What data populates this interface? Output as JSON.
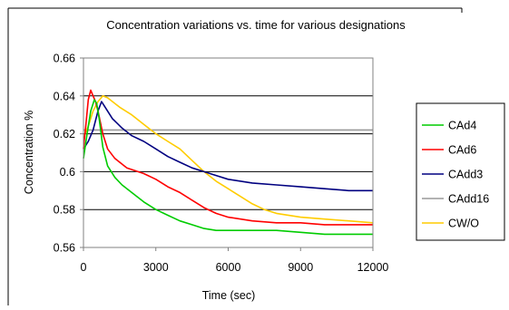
{
  "chart_data": {
    "type": "line",
    "title": "Concentration variations vs. time for various designations",
    "xlabel": "Time (sec)",
    "ylabel": "Concentration %",
    "xlim": [
      0,
      12000
    ],
    "ylim": [
      0.56,
      0.66
    ],
    "xticks": [
      0,
      3000,
      6000,
      9000,
      12000
    ],
    "xtick_labels": [
      "0",
      "3000",
      "6000",
      "9000",
      "12000"
    ],
    "yticks": [
      0.56,
      0.58,
      0.6,
      0.62,
      0.64,
      0.66
    ],
    "ytick_labels": [
      "0.56",
      "0.58",
      "0.6",
      "0.62",
      "0.64",
      "0.66"
    ],
    "grid": "horizontal",
    "legend_position": "right",
    "series": [
      {
        "name": "CAd4",
        "color": "#00cc00",
        "points": [
          [
            0,
            0.607
          ],
          [
            150,
            0.62
          ],
          [
            300,
            0.632
          ],
          [
            450,
            0.638
          ],
          [
            550,
            0.636
          ],
          [
            650,
            0.628
          ],
          [
            800,
            0.613
          ],
          [
            1000,
            0.603
          ],
          [
            1300,
            0.597
          ],
          [
            1600,
            0.593
          ],
          [
            2000,
            0.589
          ],
          [
            2500,
            0.584
          ],
          [
            3000,
            0.58
          ],
          [
            3500,
            0.577
          ],
          [
            4000,
            0.574
          ],
          [
            4500,
            0.572
          ],
          [
            5000,
            0.57
          ],
          [
            5500,
            0.569
          ],
          [
            6000,
            0.569
          ],
          [
            7000,
            0.569
          ],
          [
            8000,
            0.569
          ],
          [
            9000,
            0.568
          ],
          [
            10000,
            0.567
          ],
          [
            11000,
            0.567
          ],
          [
            12000,
            0.567
          ]
        ]
      },
      {
        "name": "CAd6",
        "color": "#ff0000",
        "points": [
          [
            0,
            0.612
          ],
          [
            100,
            0.625
          ],
          [
            200,
            0.638
          ],
          [
            300,
            0.643
          ],
          [
            400,
            0.64
          ],
          [
            500,
            0.637
          ],
          [
            600,
            0.632
          ],
          [
            800,
            0.62
          ],
          [
            1000,
            0.612
          ],
          [
            1300,
            0.607
          ],
          [
            1800,
            0.602
          ],
          [
            2500,
            0.599
          ],
          [
            3000,
            0.596
          ],
          [
            3500,
            0.592
          ],
          [
            4000,
            0.589
          ],
          [
            4500,
            0.585
          ],
          [
            5000,
            0.581
          ],
          [
            5500,
            0.578
          ],
          [
            6000,
            0.576
          ],
          [
            7000,
            0.574
          ],
          [
            8000,
            0.573
          ],
          [
            9000,
            0.573
          ],
          [
            10000,
            0.572
          ],
          [
            11000,
            0.572
          ],
          [
            12000,
            0.572
          ]
        ]
      },
      {
        "name": "CAdd3",
        "color": "#000080",
        "points": [
          [
            0,
            0.612
          ],
          [
            200,
            0.616
          ],
          [
            400,
            0.622
          ],
          [
            600,
            0.632
          ],
          [
            750,
            0.637
          ],
          [
            900,
            0.634
          ],
          [
            1200,
            0.628
          ],
          [
            1600,
            0.623
          ],
          [
            2000,
            0.619
          ],
          [
            2500,
            0.616
          ],
          [
            3000,
            0.612
          ],
          [
            3500,
            0.608
          ],
          [
            4000,
            0.605
          ],
          [
            4500,
            0.602
          ],
          [
            5000,
            0.6
          ],
          [
            5500,
            0.598
          ],
          [
            6000,
            0.596
          ],
          [
            7000,
            0.594
          ],
          [
            8000,
            0.593
          ],
          [
            9000,
            0.592
          ],
          [
            10000,
            0.591
          ],
          [
            11000,
            0.59
          ],
          [
            12000,
            0.59
          ]
        ]
      },
      {
        "name": "CAdd16",
        "color": "#999999",
        "points": [
          [
            0,
            0.622
          ],
          [
            1000,
            0.622
          ],
          [
            2000,
            0.622
          ],
          [
            3000,
            0.622
          ],
          [
            4000,
            0.622
          ],
          [
            5000,
            0.622
          ],
          [
            6000,
            0.622
          ],
          [
            7000,
            0.622
          ],
          [
            8000,
            0.622
          ],
          [
            9000,
            0.622
          ],
          [
            10000,
            0.622
          ],
          [
            11000,
            0.622
          ],
          [
            12000,
            0.622
          ]
        ]
      },
      {
        "name": "CW/O",
        "color": "#ffcc00",
        "points": [
          [
            0,
            0.618
          ],
          [
            200,
            0.624
          ],
          [
            400,
            0.632
          ],
          [
            600,
            0.637
          ],
          [
            800,
            0.64
          ],
          [
            1000,
            0.639
          ],
          [
            1500,
            0.634
          ],
          [
            2000,
            0.63
          ],
          [
            2500,
            0.625
          ],
          [
            3000,
            0.62
          ],
          [
            3500,
            0.616
          ],
          [
            4000,
            0.612
          ],
          [
            4500,
            0.606
          ],
          [
            5000,
            0.6
          ],
          [
            5500,
            0.595
          ],
          [
            6000,
            0.591
          ],
          [
            6500,
            0.587
          ],
          [
            7000,
            0.583
          ],
          [
            7500,
            0.58
          ],
          [
            8000,
            0.578
          ],
          [
            9000,
            0.576
          ],
          [
            10000,
            0.575
          ],
          [
            11000,
            0.574
          ],
          [
            12000,
            0.573
          ]
        ]
      }
    ]
  }
}
